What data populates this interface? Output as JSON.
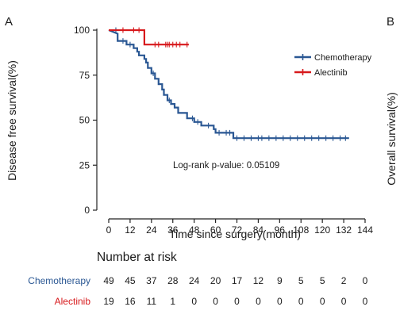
{
  "panel_a_label": "A",
  "panel_b_label": "B",
  "panel_b_ylabel": "Overall survival(%)",
  "chart_data": {
    "type": "line",
    "step": true,
    "xlabel": "Time since surgery(month)",
    "ylabel": "Disease free survival(%)",
    "xlim": [
      0,
      144
    ],
    "ylim": [
      0,
      100
    ],
    "xticks": [
      0,
      12,
      24,
      36,
      48,
      60,
      72,
      84,
      96,
      108,
      120,
      132,
      144
    ],
    "yticks": [
      0,
      25,
      50,
      75,
      100
    ],
    "legend_position": "top-right",
    "annotation": "Log-rank p-value: 0.05109",
    "series": [
      {
        "name": "Chemotherapy",
        "color": "#2a5793",
        "steps": [
          [
            0,
            100
          ],
          [
            5,
            98
          ],
          [
            5,
            94
          ],
          [
            10,
            94
          ],
          [
            10,
            92
          ],
          [
            14,
            92
          ],
          [
            14,
            90
          ],
          [
            16,
            90
          ],
          [
            16,
            88
          ],
          [
            17,
            88
          ],
          [
            17,
            86
          ],
          [
            20,
            86
          ],
          [
            20,
            84
          ],
          [
            21,
            84
          ],
          [
            21,
            82
          ],
          [
            22,
            82
          ],
          [
            22,
            79
          ],
          [
            24,
            79
          ],
          [
            24,
            76
          ],
          [
            26,
            76
          ],
          [
            26,
            73
          ],
          [
            28,
            73
          ],
          [
            28,
            70
          ],
          [
            30,
            70
          ],
          [
            30,
            67
          ],
          [
            31,
            67
          ],
          [
            31,
            64
          ],
          [
            33,
            64
          ],
          [
            33,
            61
          ],
          [
            35,
            61
          ],
          [
            35,
            59
          ],
          [
            37,
            59
          ],
          [
            37,
            57
          ],
          [
            39,
            57
          ],
          [
            39,
            54
          ],
          [
            44,
            54
          ],
          [
            44,
            51
          ],
          [
            48,
            51
          ],
          [
            48,
            49
          ],
          [
            52,
            49
          ],
          [
            52,
            47
          ],
          [
            59,
            47
          ],
          [
            59,
            45
          ],
          [
            60,
            45
          ],
          [
            60,
            43
          ],
          [
            70,
            43
          ],
          [
            70,
            40
          ],
          [
            135,
            40
          ]
        ],
        "censored": [
          [
            4,
            100
          ],
          [
            8,
            94
          ],
          [
            12,
            92
          ],
          [
            25,
            76
          ],
          [
            34,
            61
          ],
          [
            47,
            51
          ],
          [
            50,
            49
          ],
          [
            56,
            47
          ],
          [
            62,
            43
          ],
          [
            66,
            43
          ],
          [
            68,
            43
          ],
          [
            72,
            40
          ],
          [
            76,
            40
          ],
          [
            80,
            40
          ],
          [
            84,
            40
          ],
          [
            86,
            40
          ],
          [
            90,
            40
          ],
          [
            94,
            40
          ],
          [
            98,
            40
          ],
          [
            102,
            40
          ],
          [
            106,
            40
          ],
          [
            110,
            40
          ],
          [
            114,
            40
          ],
          [
            118,
            40
          ],
          [
            122,
            40
          ],
          [
            126,
            40
          ],
          [
            130,
            40
          ],
          [
            133,
            40
          ]
        ]
      },
      {
        "name": "Alectinib",
        "color": "#d7191c",
        "steps": [
          [
            0,
            100
          ],
          [
            20,
            100
          ],
          [
            20,
            92
          ],
          [
            45,
            92
          ]
        ],
        "censored": [
          [
            8,
            100
          ],
          [
            14,
            100
          ],
          [
            17,
            100
          ],
          [
            26,
            92
          ],
          [
            28,
            92
          ],
          [
            32,
            92
          ],
          [
            33,
            92
          ],
          [
            34,
            92
          ],
          [
            36,
            92
          ],
          [
            38,
            92
          ],
          [
            40,
            92
          ],
          [
            44,
            92
          ]
        ]
      }
    ]
  },
  "risk_table": {
    "title": "Number at risk",
    "rows": [
      {
        "name": "Chemotherapy",
        "color": "#2a5793",
        "values": [
          49,
          45,
          37,
          28,
          24,
          20,
          17,
          12,
          9,
          5,
          5,
          2,
          0
        ]
      },
      {
        "name": "Alectinib",
        "color": "#d7191c",
        "values": [
          19,
          16,
          11,
          1,
          0,
          0,
          0,
          0,
          0,
          0,
          0,
          0,
          0
        ]
      }
    ]
  }
}
